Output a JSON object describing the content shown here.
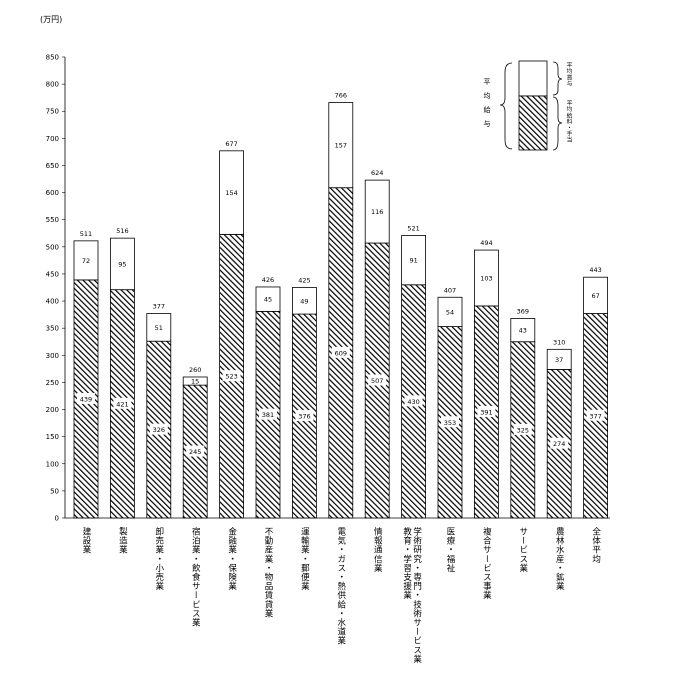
{
  "chart_data": {
    "type": "bar",
    "stacked": true,
    "unit_label": "(万円)",
    "ylim": [
      0,
      850
    ],
    "yticks": [
      0,
      50,
      100,
      150,
      200,
      250,
      300,
      350,
      400,
      450,
      500,
      550,
      600,
      650,
      700,
      750,
      800,
      850
    ],
    "categories": [
      "建設業",
      "製造業",
      "卸売業・小売業",
      "宿泊業・飲食サービス業",
      "金融業・保険業",
      "不動産業・物品賃貸業",
      "運輸業・郵便業",
      "電気・ガス・熱供給・水道業",
      "情報通信業",
      "学術研究・専門・技術サービス業 教育・学習支援業",
      "医療・福祉",
      "複合サービス事業",
      "サービス業",
      "農林水産・鉱業",
      "全体平均"
    ],
    "category_lines": [
      [
        "建設業"
      ],
      [
        "製造業"
      ],
      [
        "卸売業・小売業"
      ],
      [
        "宿泊業・飲食サービス業"
      ],
      [
        "金融業・保険業"
      ],
      [
        "不動産業・物品賃貸業"
      ],
      [
        "運輸業・郵便業"
      ],
      [
        "電気・ガス・熱供給・水道業"
      ],
      [
        "情報通信業"
      ],
      [
        "学術研究・専門・技術サービス業",
        "教育・学習支援業"
      ],
      [
        "医療・福祉"
      ],
      [
        "複合サービス事業"
      ],
      [
        "サービス業"
      ],
      [
        "農林水産・鉱業"
      ],
      [
        "全体平均"
      ]
    ],
    "series": [
      {
        "name": "平均給料・手当",
        "pattern": "hatched",
        "values": [
          439,
          421,
          326,
          245,
          523,
          381,
          376,
          609,
          507,
          430,
          353,
          391,
          325,
          274,
          377
        ]
      },
      {
        "name": "平均賞与",
        "pattern": "white",
        "values": [
          72,
          95,
          51,
          15,
          154,
          45,
          49,
          157,
          116,
          91,
          54,
          103,
          43,
          37,
          67
        ]
      }
    ],
    "totals": [
      511,
      516,
      377,
      260,
      677,
      426,
      425,
      766,
      624,
      521,
      407,
      494,
      369,
      310,
      443
    ],
    "legend": {
      "position": "top-right",
      "group_label": "平均給与",
      "items": [
        "平均賞与",
        "平均給料・手当"
      ]
    },
    "colors": {
      "stroke": "#000000",
      "hatch": "#000000",
      "bonus_fill": "#ffffff"
    }
  }
}
